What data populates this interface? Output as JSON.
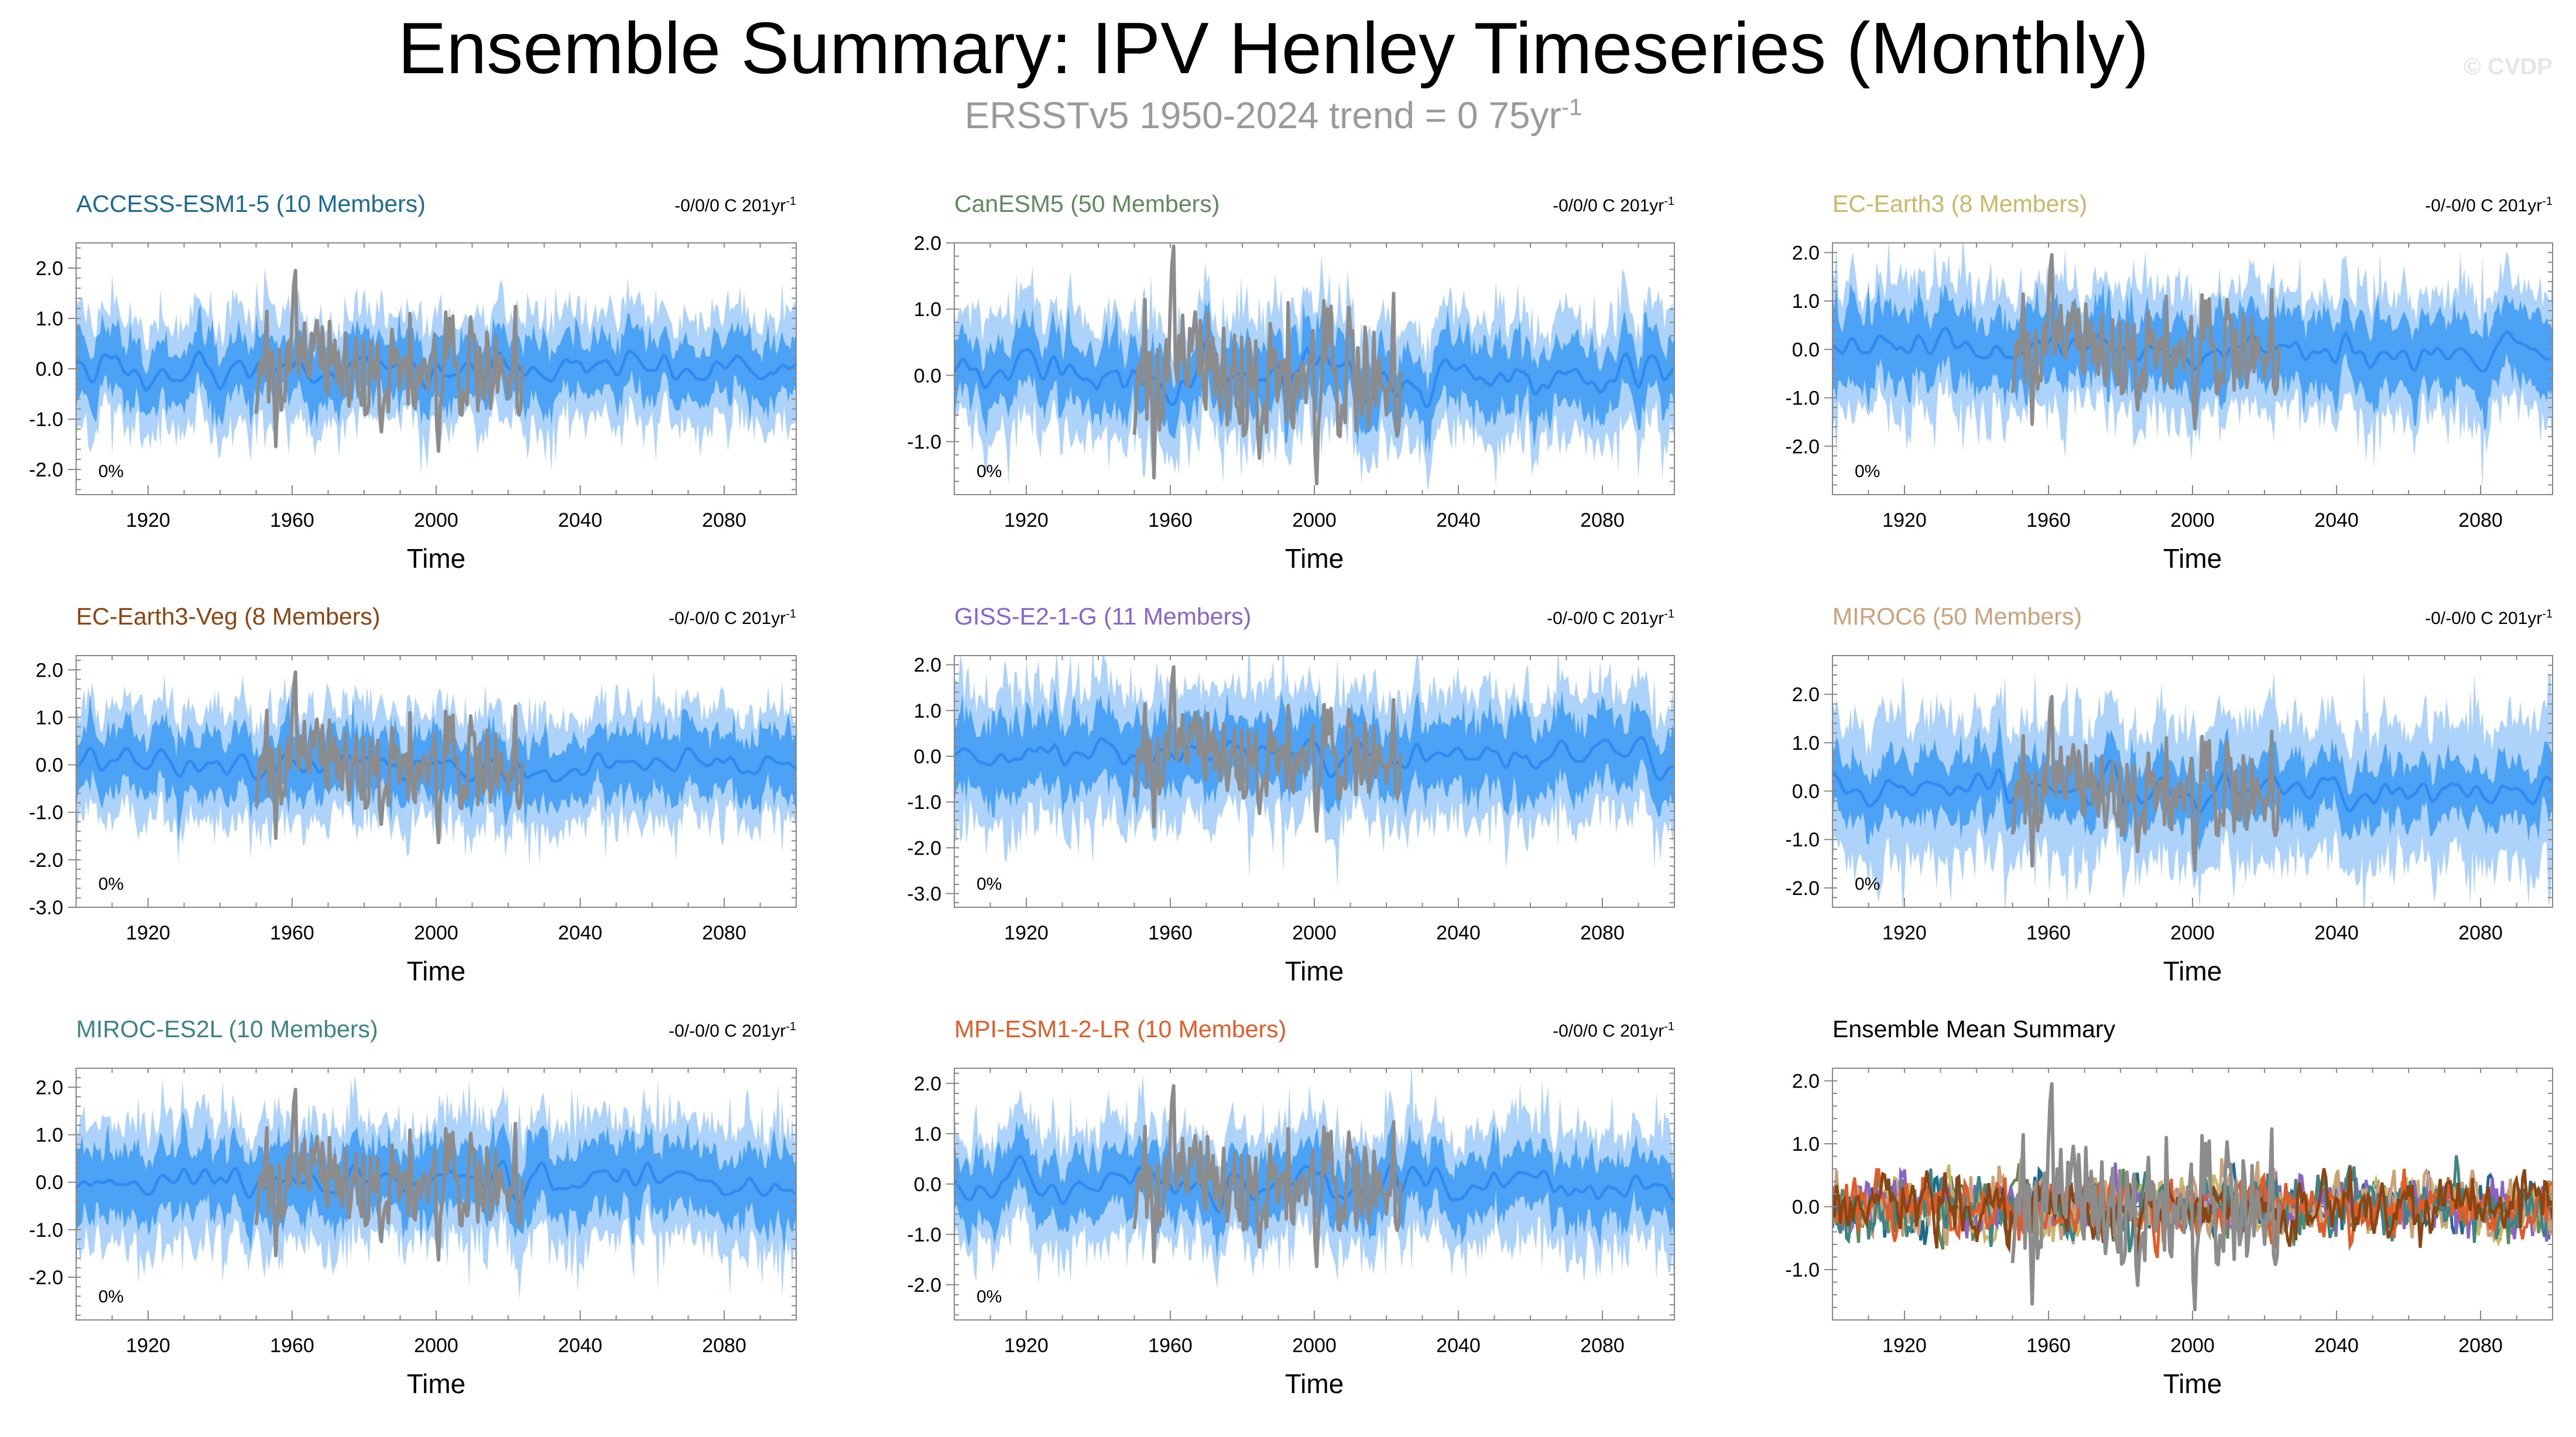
{
  "title": "Ensemble Summary: IPV Henley Timeseries (Monthly)",
  "subtitle": {
    "text": "ERSSTv5 1950-2024 trend = 0 75yr",
    "superscript": "-1"
  },
  "watermark": "© CVDP",
  "colors": {
    "spread_outer": "#aed3fa",
    "spread_inner": "#4ca3f5",
    "ensemble_mean": "#2f8bf0",
    "observations": "#8c8c8c"
  },
  "chart_data": [
    {
      "type": "line",
      "title": "ACCESS-ESM1-5 (10 Members)",
      "title_color": "#1c6b8f",
      "trend_text": "-0/0/0 C 201yr",
      "trend_sup": "-1",
      "percent_label": "0%",
      "xlabel": "Time",
      "xlim": [
        1900,
        2100
      ],
      "xticks": [
        1920,
        1960,
        2000,
        2040,
        2080
      ],
      "xtick_labels": [
        "1920",
        "1960",
        "2000",
        "2040",
        "2080"
      ],
      "ylim": [
        -2.5,
        2.5
      ],
      "yticks": [
        -2,
        -1,
        0,
        1,
        2
      ],
      "ytick_labels": [
        "-2.0",
        "-1.0",
        "0.0",
        "1.0",
        "2.0"
      ],
      "series": [
        {
          "role": "ensemble",
          "band_outer": 1.0,
          "band_inner": 0.55,
          "seed": 11
        },
        {
          "role": "observations",
          "x_range": [
            1950,
            2024
          ],
          "seed": 101
        }
      ]
    },
    {
      "type": "line",
      "title": "CanESM5 (50 Members)",
      "title_color": "#5e8a5e",
      "trend_text": "-0/0/0 C 201yr",
      "trend_sup": "-1",
      "percent_label": "0%",
      "xlabel": "Time",
      "xlim": [
        1900,
        2100
      ],
      "xticks": [
        1920,
        1960,
        2000,
        2040,
        2080
      ],
      "xtick_labels": [
        "1920",
        "1960",
        "2000",
        "2040",
        "2080"
      ],
      "ylim": [
        -1.8,
        2.0
      ],
      "yticks": [
        -1,
        0,
        1,
        2
      ],
      "ytick_labels": [
        "-1.0",
        "0.0",
        "1.0",
        "2.0"
      ],
      "series": [
        {
          "role": "ensemble",
          "band_outer": 0.85,
          "band_inner": 0.45,
          "seed": 22
        },
        {
          "role": "observations",
          "x_range": [
            1950,
            2024
          ],
          "seed": 101
        }
      ]
    },
    {
      "type": "line",
      "title": "EC-Earth3 (8 Members)",
      "title_color": "#c9b867",
      "trend_text": "-0/-0/0 C 201yr",
      "trend_sup": "-1",
      "percent_label": "0%",
      "xlabel": "Time",
      "xlim": [
        1900,
        2100
      ],
      "xticks": [
        1920,
        1960,
        2000,
        2040,
        2080
      ],
      "xtick_labels": [
        "1920",
        "1960",
        "2000",
        "2040",
        "2080"
      ],
      "ylim": [
        -3.0,
        2.2
      ],
      "yticks": [
        -2,
        -1,
        0,
        1,
        2
      ],
      "ytick_labels": [
        "-2.0",
        "-1.0",
        "0.0",
        "1.0",
        "2.0"
      ],
      "series": [
        {
          "role": "ensemble",
          "band_outer": 1.2,
          "band_inner": 0.7,
          "seed": 33
        },
        {
          "role": "observations",
          "x_range": [
            1950,
            2024
          ],
          "seed": 101
        }
      ]
    },
    {
      "type": "line",
      "title": "EC-Earth3-Veg (8 Members)",
      "title_color": "#8b4513",
      "trend_text": "-0/-0/0 C 201yr",
      "trend_sup": "-1",
      "percent_label": "0%",
      "xlabel": "Time",
      "xlim": [
        1900,
        2100
      ],
      "xticks": [
        1920,
        1960,
        2000,
        2040,
        2080
      ],
      "xtick_labels": [
        "1920",
        "1960",
        "2000",
        "2040",
        "2080"
      ],
      "ylim": [
        -3.0,
        2.3
      ],
      "yticks": [
        -3,
        -2,
        -1,
        0,
        1,
        2
      ],
      "ytick_labels": [
        "-3.0",
        "-2.0",
        "-1.0",
        "0.0",
        "1.0",
        "2.0"
      ],
      "series": [
        {
          "role": "ensemble",
          "band_outer": 1.1,
          "band_inner": 0.6,
          "seed": 44
        },
        {
          "role": "observations",
          "x_range": [
            1950,
            2024
          ],
          "seed": 101
        }
      ]
    },
    {
      "type": "line",
      "title": "GISS-E2-1-G (11 Members)",
      "title_color": "#8a63c8",
      "trend_text": "-0/-0/0 C 201yr",
      "trend_sup": "-1",
      "percent_label": "0%",
      "xlabel": "Time",
      "xlim": [
        1900,
        2100
      ],
      "xticks": [
        1920,
        1960,
        2000,
        2040,
        2080
      ],
      "xtick_labels": [
        "1920",
        "1960",
        "2000",
        "2040",
        "2080"
      ],
      "ylim": [
        -3.3,
        2.2
      ],
      "yticks": [
        -3,
        -2,
        -1,
        0,
        1,
        2
      ],
      "ytick_labels": [
        "-3.0",
        "-2.0",
        "-1.0",
        "0.0",
        "1.0",
        "2.0"
      ],
      "series": [
        {
          "role": "ensemble",
          "band_outer": 1.3,
          "band_inner": 0.7,
          "seed": 55
        },
        {
          "role": "observations",
          "x_range": [
            1950,
            2024
          ],
          "seed": 101
        }
      ]
    },
    {
      "type": "line",
      "title": "MIROC6 (50 Members)",
      "title_color": "#c9a27a",
      "trend_text": "-0/-0/0 C 201yr",
      "trend_sup": "-1",
      "percent_label": "0%",
      "xlabel": "Time",
      "xlim": [
        1900,
        2100
      ],
      "xticks": [
        1920,
        1960,
        2000,
        2040,
        2080
      ],
      "xtick_labels": [
        "1920",
        "1960",
        "2000",
        "2040",
        "2080"
      ],
      "ylim": [
        -2.4,
        2.8
      ],
      "yticks": [
        -2,
        -1,
        0,
        1,
        2
      ],
      "ytick_labels": [
        "-2.0",
        "-1.0",
        "0.0",
        "1.0",
        "2.0"
      ],
      "series": [
        {
          "role": "ensemble",
          "band_outer": 1.35,
          "band_inner": 0.55,
          "seed": 66
        },
        {
          "role": "observations",
          "x_range": [
            1950,
            2024
          ],
          "seed": 101
        }
      ]
    },
    {
      "type": "line",
      "title": "MIROC-ES2L (10 Members)",
      "title_color": "#3d8585",
      "trend_text": "-0/-0/0 C 201yr",
      "trend_sup": "-1",
      "percent_label": "0%",
      "xlabel": "Time",
      "xlim": [
        1900,
        2100
      ],
      "xticks": [
        1920,
        1960,
        2000,
        2040,
        2080
      ],
      "xtick_labels": [
        "1920",
        "1960",
        "2000",
        "2040",
        "2080"
      ],
      "ylim": [
        -2.9,
        2.4
      ],
      "yticks": [
        -2,
        -1,
        0,
        1,
        2
      ],
      "ytick_labels": [
        "-2.0",
        "-1.0",
        "0.0",
        "1.0",
        "2.0"
      ],
      "series": [
        {
          "role": "ensemble",
          "band_outer": 1.2,
          "band_inner": 0.65,
          "seed": 77
        },
        {
          "role": "observations",
          "x_range": [
            1950,
            2024
          ],
          "seed": 101
        }
      ]
    },
    {
      "type": "line",
      "title": "MPI-ESM1-2-LR (10 Members)",
      "title_color": "#e05c28",
      "trend_text": "-0/0/0 C 201yr",
      "trend_sup": "-1",
      "percent_label": "0%",
      "xlabel": "Time",
      "xlim": [
        1900,
        2100
      ],
      "xticks": [
        1920,
        1960,
        2000,
        2040,
        2080
      ],
      "xtick_labels": [
        "1920",
        "1960",
        "2000",
        "2040",
        "2080"
      ],
      "ylim": [
        -2.7,
        2.3
      ],
      "yticks": [
        -2,
        -1,
        0,
        1,
        2
      ],
      "ytick_labels": [
        "-2.0",
        "-1.0",
        "0.0",
        "1.0",
        "2.0"
      ],
      "series": [
        {
          "role": "ensemble",
          "band_outer": 1.05,
          "band_inner": 0.55,
          "seed": 88
        },
        {
          "role": "observations",
          "x_range": [
            1950,
            2024
          ],
          "seed": 101
        }
      ]
    },
    {
      "type": "line",
      "title": "Ensemble Mean Summary",
      "title_color": "#000000",
      "trend_text": "",
      "trend_sup": "",
      "percent_label": "",
      "xlabel": "Time",
      "xlim": [
        1900,
        2100
      ],
      "xticks": [
        1920,
        1960,
        2000,
        2040,
        2080
      ],
      "xtick_labels": [
        "1920",
        "1960",
        "2000",
        "2040",
        "2080"
      ],
      "ylim": [
        -1.8,
        2.2
      ],
      "yticks": [
        -1,
        0,
        1,
        2
      ],
      "ytick_labels": [
        "-1.0",
        "0.0",
        "1.0",
        "2.0"
      ],
      "series": [
        {
          "role": "member_mean",
          "color": "#1c6b8f",
          "seed": 201
        },
        {
          "role": "member_mean",
          "color": "#5e8a5e",
          "seed": 202
        },
        {
          "role": "member_mean",
          "color": "#c9b867",
          "seed": 203
        },
        {
          "role": "member_mean",
          "color": "#8a63c8",
          "seed": 204
        },
        {
          "role": "member_mean",
          "color": "#c9a27a",
          "seed": 205
        },
        {
          "role": "member_mean",
          "color": "#3d8585",
          "seed": 206
        },
        {
          "role": "member_mean",
          "color": "#e05c28",
          "seed": 207
        },
        {
          "role": "member_mean",
          "color": "#8b4513",
          "seed": 208
        },
        {
          "role": "observations",
          "x_range": [
            1950,
            2024
          ],
          "seed": 101
        }
      ]
    }
  ]
}
